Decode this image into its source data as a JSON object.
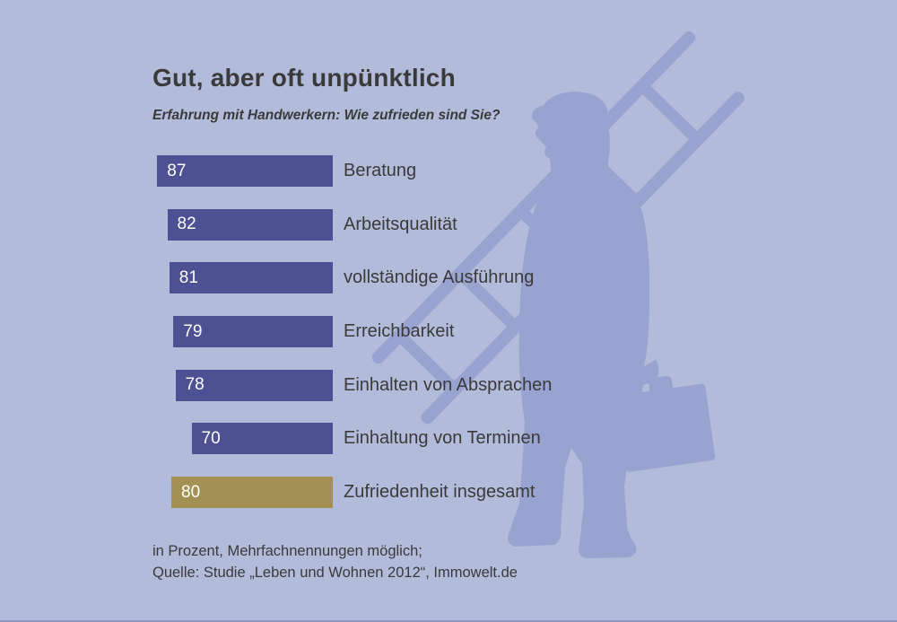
{
  "title": "Gut, aber oft unpünktlich",
  "subtitle": "Erfahrung mit Handwerkern: Wie zufrieden sind Sie?",
  "footnote": {
    "line1": "in Prozent, Mehrfachnennungen möglich;",
    "line2": "Quelle: Studie „Leben und Wohnen 2012“, Immowelt.de"
  },
  "colors": {
    "background": "#b3bbda",
    "silhouette": "#98a3cf",
    "bar_primary": "#4d5193",
    "bar_highlight": "#a39154",
    "text": "#3a3a3a",
    "value_text": "#ffffff",
    "bottom_line": "#8e97c0"
  },
  "chart_data": {
    "type": "bar",
    "orientation": "horizontal",
    "unit": "percent",
    "title": "Gut, aber oft unpünktlich",
    "subtitle": "Erfahrung mit Handwerkern: Wie zufrieden sind Sie?",
    "categories": [
      "Beratung",
      "Arbeitsqualität",
      "vollständige Ausführung",
      "Erreichbarkeit",
      "Einhalten von Absprachen",
      "Einhaltung von Terminen",
      "Zufriedenheit insgesamt"
    ],
    "values": [
      87,
      82,
      81,
      79,
      78,
      70,
      80
    ],
    "value_labels_inside_bar": true,
    "highlight_category": "Zufriedenheit insgesamt",
    "xlim": [
      0,
      100
    ],
    "grid": false,
    "legend": false
  }
}
